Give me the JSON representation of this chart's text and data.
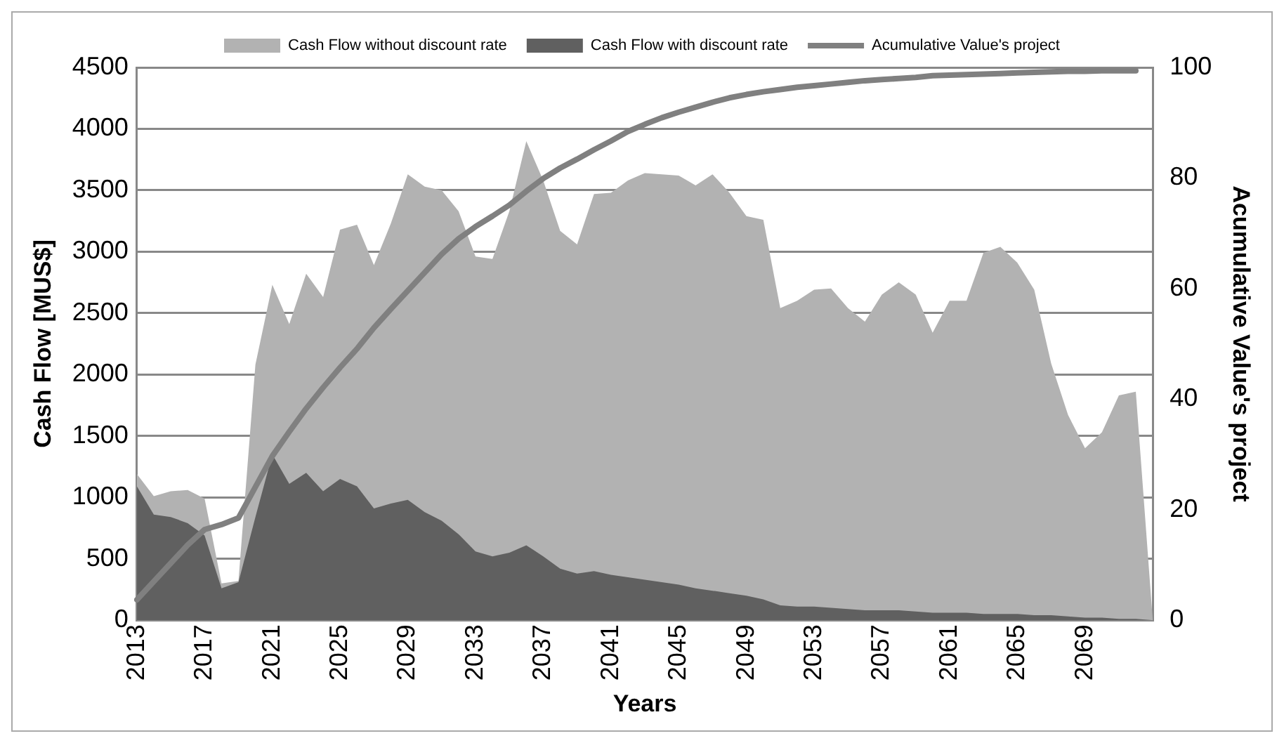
{
  "chart_data": {
    "type": "area",
    "xlabel": "Years",
    "ylabel": "Cash Flow [MUS$]",
    "y2label": "Acumulative Value's project",
    "categories": [
      "2013",
      null,
      null,
      null,
      "2017",
      null,
      null,
      null,
      "2021",
      null,
      null,
      null,
      "2025",
      null,
      null,
      null,
      "2029",
      null,
      null,
      null,
      "2033",
      null,
      null,
      null,
      "2037",
      null,
      null,
      null,
      "2041",
      null,
      null,
      null,
      "2045",
      null,
      null,
      null,
      "2049",
      null,
      null,
      null,
      "2053",
      null,
      null,
      null,
      "2057",
      null,
      null,
      null,
      "2061",
      null,
      null,
      null,
      "2065",
      null,
      null,
      null,
      "2069",
      null,
      null,
      null,
      null
    ],
    "series": [
      {
        "name": "Cash Flow without discount rate",
        "color": "#b2b2b2",
        "values": [
          1190,
          1010,
          1050,
          1060,
          990,
          300,
          320,
          2080,
          2730,
          2410,
          2820,
          2630,
          3180,
          3220,
          2890,
          3230,
          3630,
          3530,
          3500,
          3330,
          2960,
          2940,
          3330,
          3900,
          3580,
          3170,
          3060,
          3470,
          3480,
          3580,
          3640,
          3630,
          3620,
          3540,
          3630,
          3480,
          3290,
          3260,
          2540,
          2600,
          2690,
          2700,
          2540,
          2430,
          2650,
          2750,
          2650,
          2340,
          2600,
          2600,
          2990,
          3040,
          2910,
          2690,
          2090,
          1670,
          1400,
          1530,
          1830,
          1860,
          0
        ]
      },
      {
        "name": "Cash Flow with discount rate",
        "color": "#606060",
        "values": [
          1090,
          860,
          840,
          790,
          690,
          260,
          310,
          840,
          1350,
          1110,
          1200,
          1050,
          1150,
          1090,
          910,
          950,
          980,
          880,
          810,
          700,
          560,
          520,
          550,
          610,
          520,
          420,
          380,
          400,
          370,
          350,
          330,
          310,
          290,
          260,
          240,
          220,
          200,
          170,
          120,
          110,
          110,
          100,
          90,
          80,
          80,
          80,
          70,
          60,
          60,
          60,
          50,
          50,
          50,
          40,
          40,
          30,
          20,
          20,
          10,
          10,
          0
        ]
      },
      {
        "name": "Acumulative Value's project",
        "type": "line",
        "axis": "y2",
        "color": "#808080",
        "values": [
          3.7,
          7.0,
          10.3,
          13.6,
          16.4,
          17.3,
          18.5,
          24.1,
          29.7,
          34.1,
          38.3,
          42.1,
          45.7,
          49.1,
          52.9,
          56.3,
          59.6,
          62.9,
          66.2,
          69.0,
          71.2,
          73.1,
          75.1,
          77.6,
          79.9,
          81.8,
          83.4,
          85.1,
          86.7,
          88.4,
          89.7,
          90.9,
          91.9,
          92.8,
          93.7,
          94.5,
          95.1,
          95.6,
          96.0,
          96.4,
          96.7,
          97.0,
          97.3,
          97.6,
          97.8,
          98.0,
          98.2,
          98.5,
          98.6,
          98.7,
          98.8,
          98.9,
          99.0,
          99.1,
          99.2,
          99.3,
          99.3,
          99.4,
          99.4,
          99.4,
          null
        ]
      }
    ],
    "ylim": [
      0,
      4500
    ],
    "yticks": [
      0,
      500,
      1000,
      1500,
      2000,
      2500,
      3000,
      3500,
      4000,
      4500
    ],
    "y2lim": [
      0,
      100
    ],
    "y2ticks": [
      0,
      20,
      40,
      60,
      80,
      100
    ],
    "grid": "y",
    "legend": "top",
    "marker": "none"
  }
}
